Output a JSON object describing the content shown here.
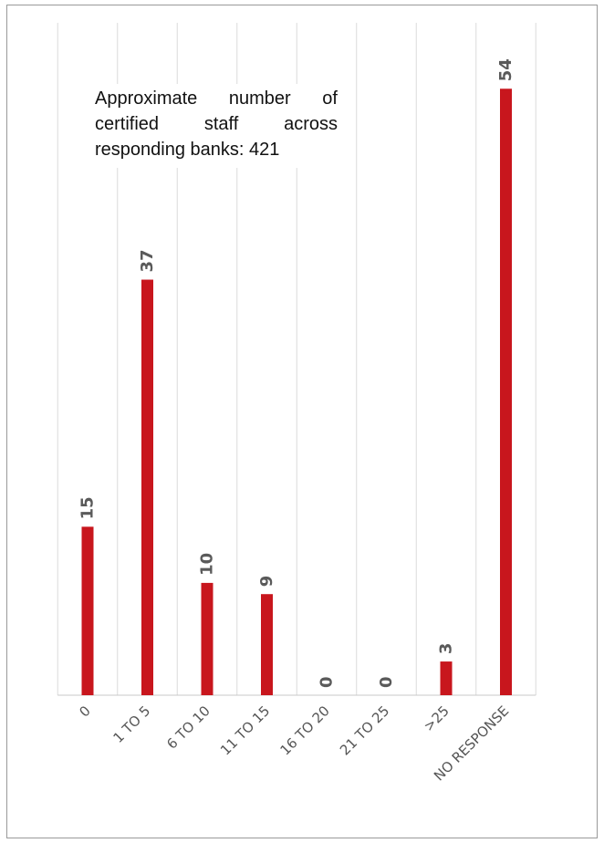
{
  "chart_data": {
    "type": "bar",
    "annotation": "Approximate number of certified staff across responding banks: 421",
    "categories": [
      "0",
      "1 TO 5",
      "6 TO 10",
      "11 TO 15",
      "16 TO 20",
      "21 TO 25",
      ">25",
      "NO RESPONSE"
    ],
    "values": [
      15,
      37,
      10,
      9,
      0,
      0,
      3,
      54
    ],
    "ylim": [
      0,
      60
    ],
    "grid": true,
    "legend": "none",
    "bar_color": "#c8161d"
  }
}
